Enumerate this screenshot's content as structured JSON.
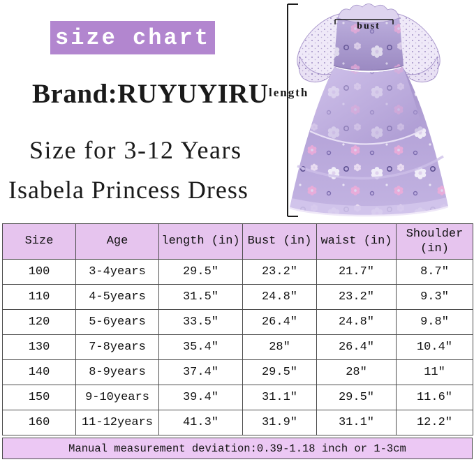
{
  "banner": {
    "label": "size chart"
  },
  "headings": {
    "brand": "Brand:RUYUYIRU",
    "size_range": "Size for 3-12 Years",
    "product": "Isabela Princess Dress"
  },
  "diagram": {
    "length_label": "length",
    "bust_label": "bust"
  },
  "size_table": {
    "columns": [
      "Size",
      "Age",
      "length (in)",
      "Bust (in)",
      "waist (in)",
      "Shoulder (in)"
    ],
    "rows": [
      [
        "100",
        "3-4years",
        "29.5″",
        "23.2″",
        "21.7″",
        "8.7″"
      ],
      [
        "110",
        "4-5years",
        "31.5″",
        "24.8″",
        "23.2″",
        "9.3″"
      ],
      [
        "120",
        "5-6years",
        "33.5″",
        "26.4″",
        "24.8″",
        "9.8″"
      ],
      [
        "130",
        "7-8years",
        "35.4″",
        "28″",
        "26.4″",
        "10.4″"
      ],
      [
        "140",
        "8-9years",
        "37.4″",
        "29.5″",
        "28″",
        "11″"
      ],
      [
        "150",
        "9-10years",
        "39.4″",
        "31.1″",
        "29.5″",
        "11.6″"
      ],
      [
        "160",
        "11-12years",
        "41.3″",
        "31.9″",
        "31.1″",
        "12.2″"
      ]
    ],
    "footer_note": "Manual measurement deviation:0.39-1.18 inch or 1-3cm"
  },
  "colors": {
    "banner_purple": "#b286cf",
    "table_header_purple": "#e6c4ee",
    "note_band_purple": "#ecc8f4",
    "dress_purple": "#b3a3d6",
    "text_black": "#1a1a1a"
  }
}
